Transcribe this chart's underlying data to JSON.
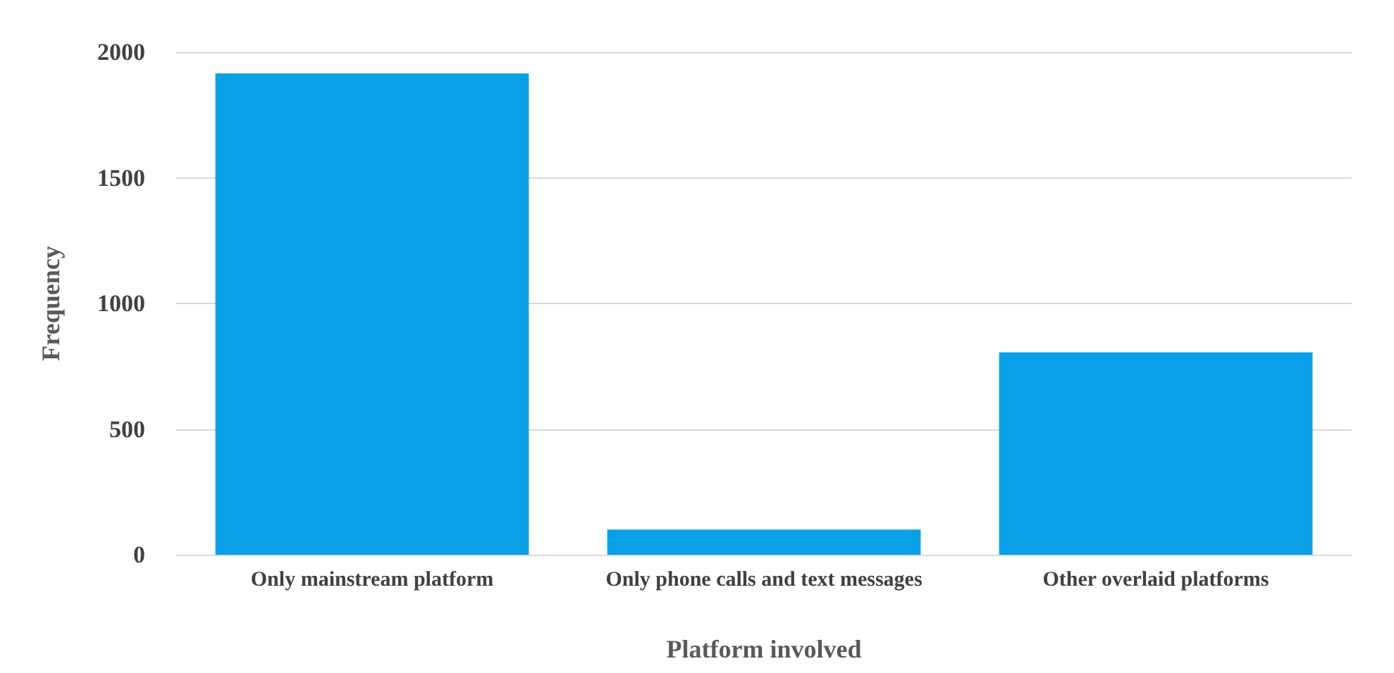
{
  "chart_data": {
    "type": "bar",
    "xlabel": "Platform involved",
    "ylabel": "Frequency",
    "categories": [
      "Only mainstream platform",
      "Only phone calls and text messages",
      "Other overlaid platforms"
    ],
    "values": [
      1915,
      100,
      805
    ],
    "color": "#0aa0e8",
    "ylim": [
      0,
      2000
    ],
    "yticks": [
      0,
      500,
      1000,
      1500,
      2000
    ],
    "grid": "y"
  }
}
